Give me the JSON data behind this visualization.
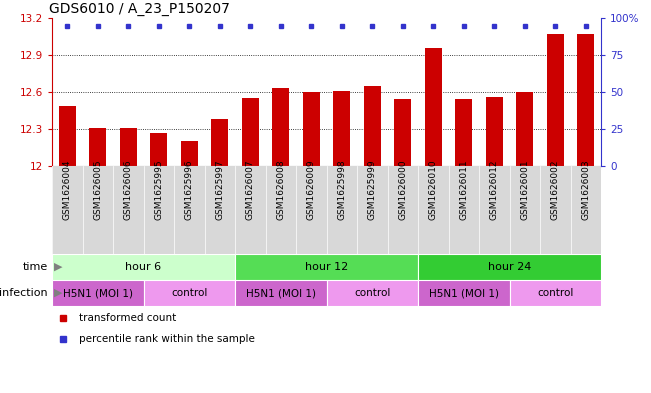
{
  "title": "GDS6010 / A_23_P150207",
  "categories": [
    "GSM1626004",
    "GSM1626005",
    "GSM1626006",
    "GSM1625995",
    "GSM1625996",
    "GSM1625997",
    "GSM1626007",
    "GSM1626008",
    "GSM1626009",
    "GSM1625998",
    "GSM1625999",
    "GSM1626000",
    "GSM1626010",
    "GSM1626011",
    "GSM1626012",
    "GSM1626001",
    "GSM1626002",
    "GSM1626003"
  ],
  "bar_values": [
    12.49,
    12.31,
    12.31,
    12.27,
    12.2,
    12.38,
    12.55,
    12.63,
    12.6,
    12.61,
    12.65,
    12.54,
    12.96,
    12.54,
    12.56,
    12.6,
    13.07,
    13.07
  ],
  "bar_color": "#cc0000",
  "dot_color": "#3333cc",
  "ylim_left": [
    12.0,
    13.2
  ],
  "ylim_right": [
    0,
    100
  ],
  "yticks_left": [
    12.0,
    12.3,
    12.6,
    12.9,
    13.2
  ],
  "yticks_right": [
    0,
    25,
    50,
    75,
    100
  ],
  "ytick_labels_right": [
    "0",
    "25",
    "50",
    "75",
    "100%"
  ],
  "ytick_labels_left": [
    "12",
    "12.3",
    "12.6",
    "12.9",
    "13.2"
  ],
  "time_groups": [
    {
      "label": "hour 6",
      "start": 0,
      "end": 6,
      "color": "#ccffcc"
    },
    {
      "label": "hour 12",
      "start": 6,
      "end": 12,
      "color": "#55dd55"
    },
    {
      "label": "hour 24",
      "start": 12,
      "end": 18,
      "color": "#33cc33"
    }
  ],
  "infection_groups": [
    {
      "label": "H5N1 (MOI 1)",
      "start": 0,
      "end": 3,
      "color": "#cc66cc"
    },
    {
      "label": "control",
      "start": 3,
      "end": 6,
      "color": "#ee99ee"
    },
    {
      "label": "H5N1 (MOI 1)",
      "start": 6,
      "end": 9,
      "color": "#cc66cc"
    },
    {
      "label": "control",
      "start": 9,
      "end": 12,
      "color": "#ee99ee"
    },
    {
      "label": "H5N1 (MOI 1)",
      "start": 12,
      "end": 15,
      "color": "#cc66cc"
    },
    {
      "label": "control",
      "start": 15,
      "end": 18,
      "color": "#ee99ee"
    }
  ],
  "legend_items": [
    {
      "label": "transformed count",
      "color": "#cc0000",
      "marker": "s"
    },
    {
      "label": "percentile rank within the sample",
      "color": "#3333cc",
      "marker": "s"
    }
  ],
  "title_fontsize": 10,
  "tick_fontsize": 7.5,
  "xtick_fontsize": 6.5,
  "label_fontsize": 8,
  "legend_fontsize": 7.5,
  "xlabel_bg": "#d8d8d8",
  "plot_bg": "#ffffff"
}
